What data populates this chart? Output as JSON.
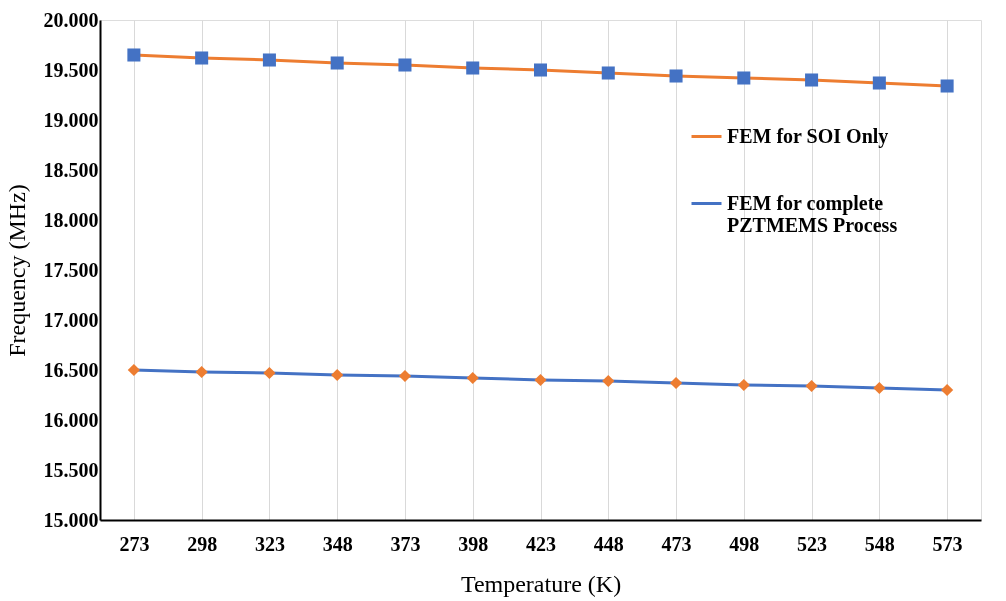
{
  "chart_data": {
    "type": "line",
    "xlabel": "Temperature (K)",
    "ylabel": "Frequency (MHz)",
    "categories": [
      "273",
      "298",
      "323",
      "348",
      "373",
      "398",
      "423",
      "448",
      "473",
      "498",
      "523",
      "548",
      "573"
    ],
    "ylim": [
      15,
      20
    ],
    "yticks": [
      {
        "value": 15,
        "label": "15.000"
      },
      {
        "value": 15.5,
        "label": "15.500"
      },
      {
        "value": 16,
        "label": "16.000"
      },
      {
        "value": 16.5,
        "label": "16.500"
      },
      {
        "value": 17,
        "label": "17.000"
      },
      {
        "value": 17.5,
        "label": "17.500"
      },
      {
        "value": 18,
        "label": "18.000"
      },
      {
        "value": 18.5,
        "label": "18.500"
      },
      {
        "value": 19,
        "label": "19.000"
      },
      {
        "value": 19.5,
        "label": "19.500"
      },
      {
        "value": 20,
        "label": "20.000"
      }
    ],
    "grid": "x",
    "legend": "right",
    "series": [
      {
        "name": "FEM for SOI Only",
        "color": "#ed7d31",
        "marker": "square",
        "colors": [
          "#4472c4",
          "#4472c4",
          "#4472c4",
          "#4472c4",
          "#4472c4",
          "#4472c4",
          "#4472c4",
          "#4472c4",
          "#4472c4",
          "#4472c4",
          "#4472c4",
          "#4472c4",
          "#4472c4"
        ],
        "values": [
          19.65,
          19.62,
          19.6,
          19.57,
          19.55,
          19.52,
          19.5,
          19.47,
          19.44,
          19.42,
          19.4,
          19.37,
          19.34
        ]
      },
      {
        "name": "FEM for complete PZTMEMS Process",
        "color": "#4472c4",
        "marker": "diamond",
        "colors": [
          "#ed7d31",
          "#ed7d31",
          "#ed7d31",
          "#ed7d31",
          "#ed7d31",
          "#ed7d31",
          "#ed7d31",
          "#ed7d31",
          "#ed7d31",
          "#ed7d31",
          "#ed7d31",
          "#ed7d31",
          "#ed7d31"
        ],
        "values": [
          16.5,
          16.48,
          16.47,
          16.45,
          16.44,
          16.42,
          16.4,
          16.39,
          16.37,
          16.35,
          16.34,
          16.32,
          16.3
        ]
      }
    ]
  }
}
